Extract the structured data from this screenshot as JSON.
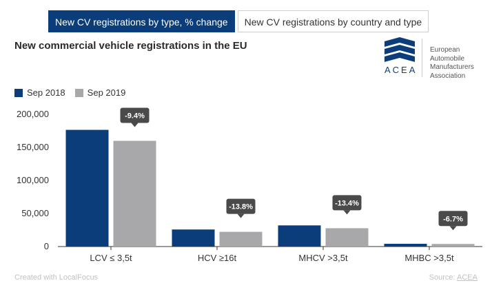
{
  "tabs": [
    {
      "label": "New CV registrations by type, % change",
      "active": true
    },
    {
      "label": "New CV registrations by country and type",
      "active": false
    }
  ],
  "title": "New commercial vehicle registrations in the EU",
  "logo": {
    "wordmark": "ACEA",
    "org_lines": [
      "European",
      "Automobile",
      "Manufacturers",
      "Association"
    ]
  },
  "footer": {
    "created_with": "Created with LocalFocus",
    "source_label": "Source:",
    "source_link": "ACEA"
  },
  "colors": {
    "series_2018": "#0a3d7a",
    "series_2019": "#a8a8ab",
    "badge": "#4a4a4a",
    "axis_text": "#333333"
  },
  "chart_data": {
    "type": "bar",
    "categories": [
      "LCV ≤ 3,5t",
      "HCV ≥16t",
      "MHCV >3,5t",
      "MHBC >3,5t"
    ],
    "series": [
      {
        "name": "Sep 2018",
        "values": [
          176500,
          25800,
          32000,
          4200
        ]
      },
      {
        "name": "Sep 2019",
        "values": [
          159900,
          22300,
          27700,
          3900
        ]
      }
    ],
    "change_labels": [
      "-9.4%",
      "-13.8%",
      "-13.4%",
      "-6.7%"
    ],
    "yticks": [
      "200,000",
      "150,000",
      "100,000",
      "50,000",
      "0"
    ],
    "ylim": [
      0,
      200000
    ],
    "legend_position": "top-left",
    "grid": false
  }
}
